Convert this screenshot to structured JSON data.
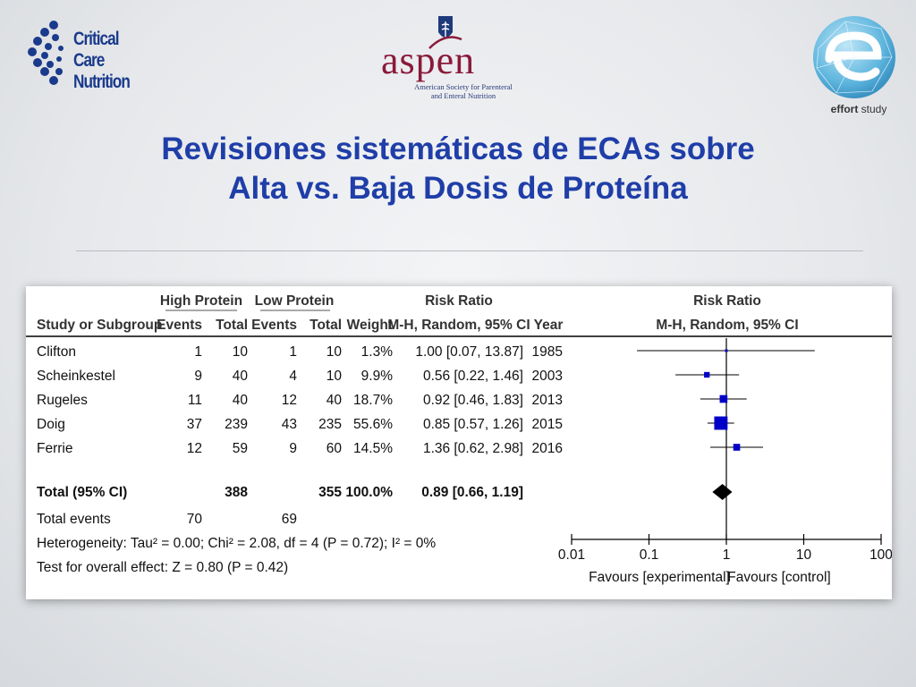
{
  "logos": {
    "ccn_line1": "Critical Care",
    "ccn_line2": "Nutrition",
    "aspen_word": "aspen",
    "aspen_sub_line1": "American Society for Parenteral",
    "aspen_sub_line2": "and Enteral Nutrition",
    "effort_bold": "effort",
    "effort_rest": " study"
  },
  "title": {
    "line1": "Revisiones sistemáticas de ECAs sobre",
    "line2": "Alta vs. Baja Dosis de Proteína"
  },
  "table": {
    "group_high": "High Protein",
    "group_low": "Low Protein",
    "col_rr": "Risk Ratio",
    "col_plot": "Risk Ratio",
    "col_study": "Study or Subgroup",
    "col_events": "Events",
    "col_total": "Total",
    "col_weight": "Weight",
    "col_method": "M-H, Random, 95% CI",
    "col_year": "Year",
    "col_plot_method": "M-H, Random, 95% CI",
    "pooled": {
      "label": "Total (95% CI)",
      "high_total": "388",
      "low_total": "355",
      "weight": "100.0%",
      "rr_text": "0.89 [0.66, 1.19]"
    },
    "total_events": {
      "label": "Total events",
      "high": "70",
      "low": "69"
    },
    "heterogeneity": "Heterogeneity: Tau² = 0.00; Chi² = 2.08, df = 4 (P = 0.72); I² = 0%",
    "overall_effect": "Test for overall effect: Z = 0.80 (P = 0.42)",
    "favours_left": "Favours [experimental]",
    "favours_right": "Favours [control]"
  },
  "chart_data": {
    "type": "forest",
    "scale": "log",
    "xlim": [
      0.01,
      100
    ],
    "ticks": [
      {
        "value": 0.01,
        "label": "0.01"
      },
      {
        "value": 0.1,
        "label": "0.1"
      },
      {
        "value": 1,
        "label": "1"
      },
      {
        "value": 10,
        "label": "10"
      },
      {
        "value": 100,
        "label": "100"
      }
    ],
    "studies": [
      {
        "study": "Clifton",
        "high_events": "1",
        "high_total": "10",
        "low_events": "1",
        "low_total": "10",
        "weight": "1.3%",
        "rr_text": "1.00 [0.07, 13.87]",
        "year": "1985",
        "rr": 1.0,
        "lo": 0.07,
        "hi": 13.87,
        "w": 1.3
      },
      {
        "study": "Scheinkestel",
        "high_events": "9",
        "high_total": "40",
        "low_events": "4",
        "low_total": "10",
        "weight": "9.9%",
        "rr_text": "0.56 [0.22, 1.46]",
        "year": "2003",
        "rr": 0.56,
        "lo": 0.22,
        "hi": 1.46,
        "w": 9.9
      },
      {
        "study": "Rugeles",
        "high_events": "11",
        "high_total": "40",
        "low_events": "12",
        "low_total": "40",
        "weight": "18.7%",
        "rr_text": "0.92 [0.46, 1.83]",
        "year": "2013",
        "rr": 0.92,
        "lo": 0.46,
        "hi": 1.83,
        "w": 18.7
      },
      {
        "study": "Doig",
        "high_events": "37",
        "high_total": "239",
        "low_events": "43",
        "low_total": "235",
        "weight": "55.6%",
        "rr_text": "0.85 [0.57, 1.26]",
        "year": "2015",
        "rr": 0.85,
        "lo": 0.57,
        "hi": 1.26,
        "w": 55.6
      },
      {
        "study": "Ferrie",
        "high_events": "12",
        "high_total": "59",
        "low_events": "9",
        "low_total": "60",
        "weight": "14.5%",
        "rr_text": "1.36 [0.62, 2.98]",
        "year": "2016",
        "rr": 1.36,
        "lo": 0.62,
        "hi": 2.98,
        "w": 14.5
      }
    ],
    "pooled": {
      "rr": 0.89,
      "lo": 0.66,
      "hi": 1.19
    },
    "colors": {
      "marker": "#0000c8",
      "diamond": "#000000",
      "line": "#000000"
    }
  }
}
